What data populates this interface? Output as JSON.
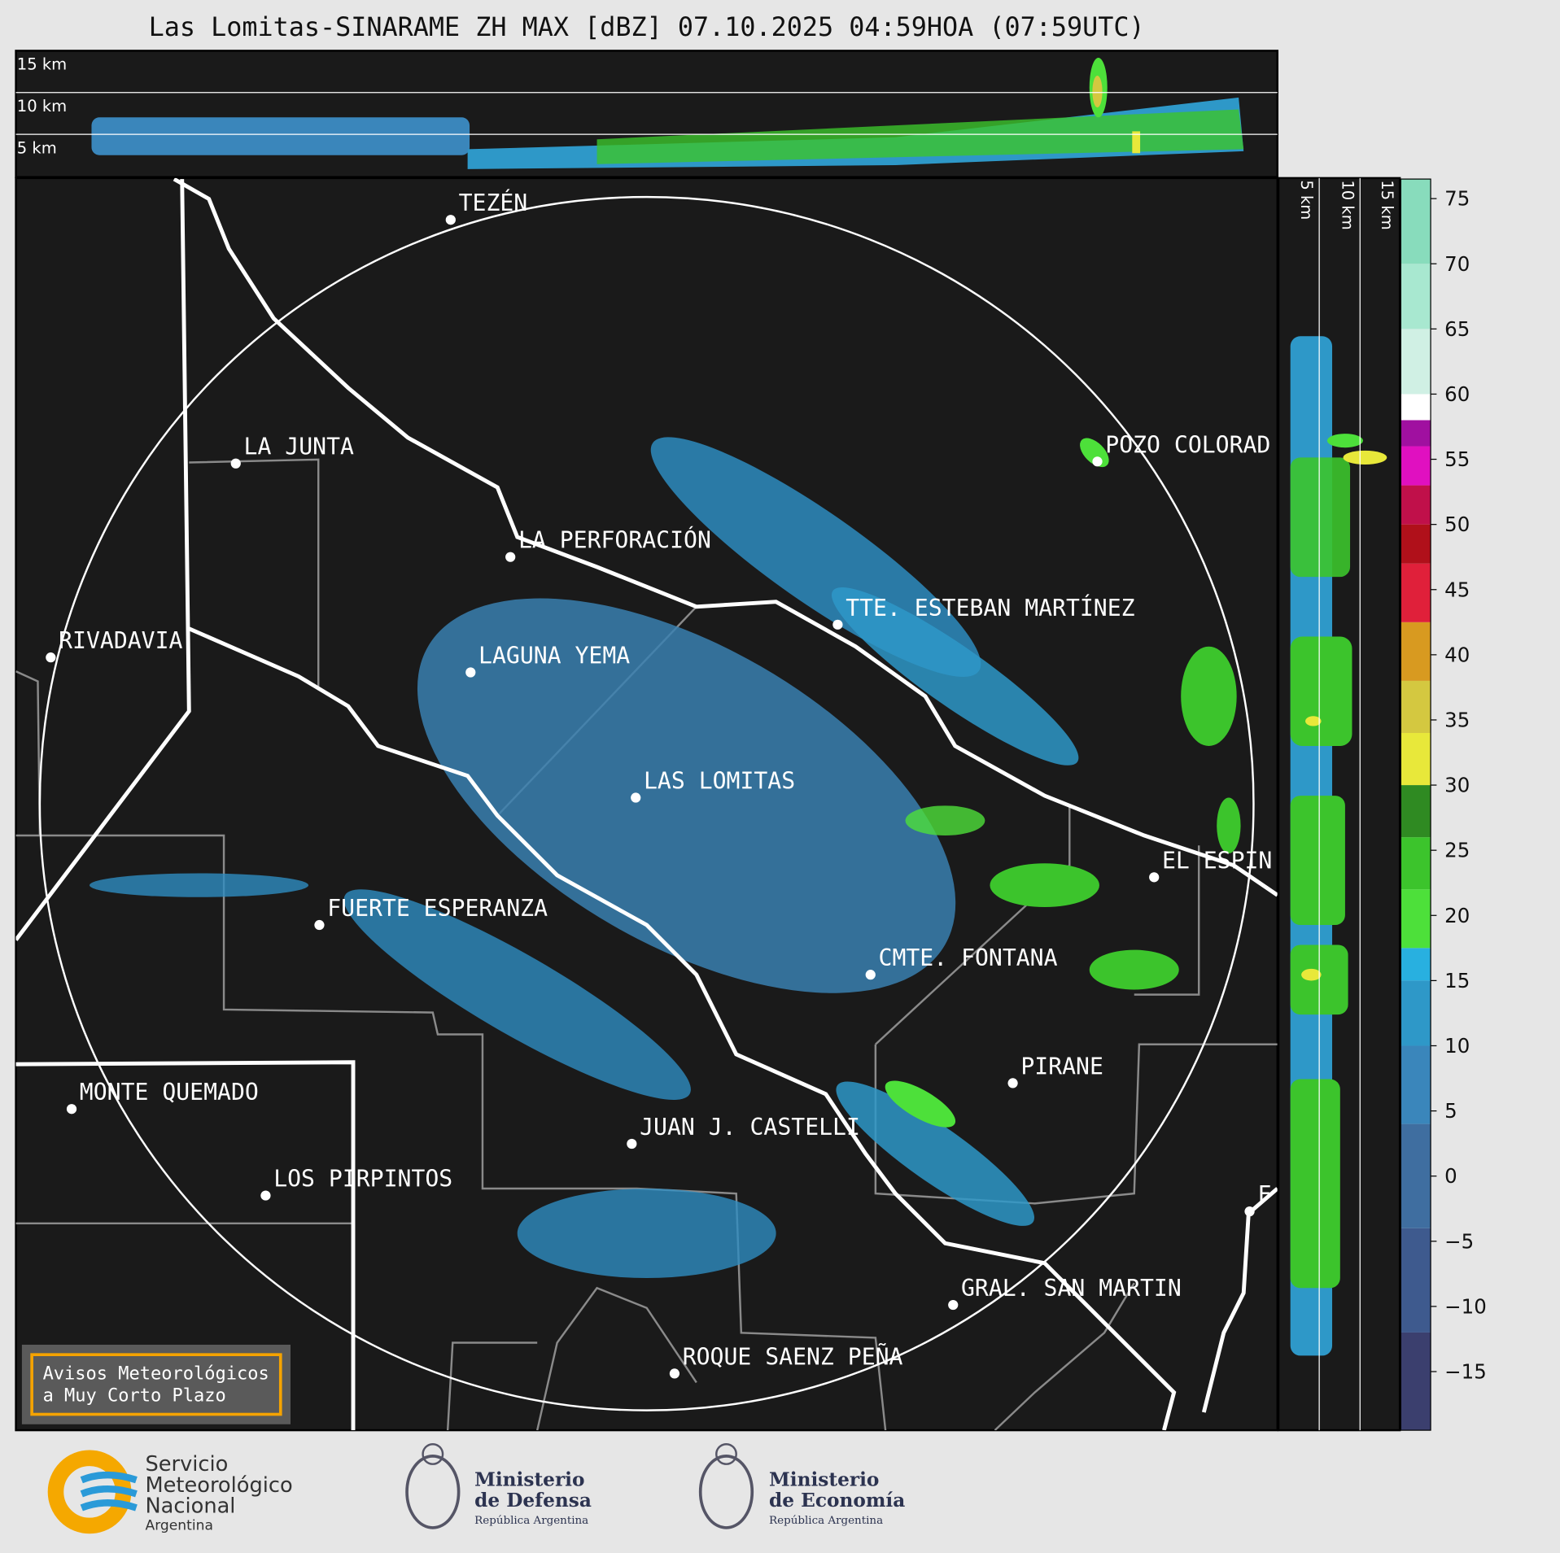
{
  "title": "Las Lomitas-SINARAME ZH MAX [dBZ] 07.10.2025 04:59HOA (07:59UTC)",
  "top_panel": {
    "labels": [
      "15 km",
      "10 km",
      "5 km"
    ]
  },
  "side_panel": {
    "labels": [
      "5 km",
      "10 km",
      "15 km"
    ]
  },
  "places": [
    "TEZÉN",
    "LA JUNTA",
    "LA PERFORACIÓN",
    "RIVADAVIA",
    "LAGUNA YEMA",
    "LAS LOMITAS",
    "TTE. ESTEBAN MARTÍNEZ",
    "POZO COLORAD",
    "EL ESPIN",
    "FUERTE ESPERANZA",
    "CMTE. FONTANA",
    "PIRANE",
    "MONTE QUEMADO",
    "JUAN J. CASTELLI",
    "LOS PIRPINTOS",
    "GRAL. SAN MARTIN",
    "ROQUE SAENZ PEÑA",
    "F"
  ],
  "colorbar": {
    "lim": [
      -19.5,
      76.5
    ],
    "ticks": [
      {
        "value": -15,
        "label": "−15"
      },
      {
        "value": -10,
        "label": "−10"
      },
      {
        "value": -5,
        "label": "−5"
      },
      0,
      5,
      10,
      15,
      20,
      25,
      30,
      35,
      40,
      45,
      50,
      55,
      60,
      65,
      70,
      75
    ],
    "bands": [
      {
        "from": -19.5,
        "to": -12,
        "color": "#3b3f6e"
      },
      {
        "from": -12,
        "to": -4,
        "color": "#3e5a8e"
      },
      {
        "from": -4,
        "to": 4,
        "color": "#3f6ea0"
      },
      {
        "from": 4,
        "to": 10,
        "color": "#3a86bb"
      },
      {
        "from": 10,
        "to": 15,
        "color": "#2e98c8"
      },
      {
        "from": 15,
        "to": 17.5,
        "color": "#28b0e0"
      },
      {
        "from": 17.5,
        "to": 22,
        "color": "#4de03a"
      },
      {
        "from": 22,
        "to": 26,
        "color": "#3cc42c"
      },
      {
        "from": 26,
        "to": 30,
        "color": "#2f8a22"
      },
      {
        "from": 30,
        "to": 34,
        "color": "#e8e83a"
      },
      {
        "from": 34,
        "to": 38,
        "color": "#d4c840"
      },
      {
        "from": 38,
        "to": 42.5,
        "color": "#d89a20"
      },
      {
        "from": 42.5,
        "to": 47,
        "color": "#e0203a"
      },
      {
        "from": 47,
        "to": 50,
        "color": "#b0101a"
      },
      {
        "from": 50,
        "to": 53,
        "color": "#c0104a"
      },
      {
        "from": 53,
        "to": 56,
        "color": "#e010c0"
      },
      {
        "from": 56,
        "to": 58,
        "color": "#a010a0"
      },
      {
        "from": 58,
        "to": 60,
        "color": "#ffffff"
      },
      {
        "from": 60,
        "to": 65,
        "color": "#d0f0e4"
      },
      {
        "from": 65,
        "to": 70,
        "color": "#a8e8d0"
      },
      {
        "from": 70,
        "to": 76.5,
        "color": "#88dcbc"
      }
    ]
  },
  "notice": [
    "Avisos Meteorológicos",
    "a Muy Corto Plazo"
  ],
  "logos": [
    {
      "lines": [
        "Servicio",
        "Meteorológico",
        "Nacional"
      ],
      "sub": "Argentina"
    },
    {
      "lines": [
        "Ministerio",
        "de Defensa"
      ],
      "sub": "República Argentina"
    },
    {
      "lines": [
        "Ministerio",
        "de Economía"
      ],
      "sub": "República Argentina"
    }
  ]
}
